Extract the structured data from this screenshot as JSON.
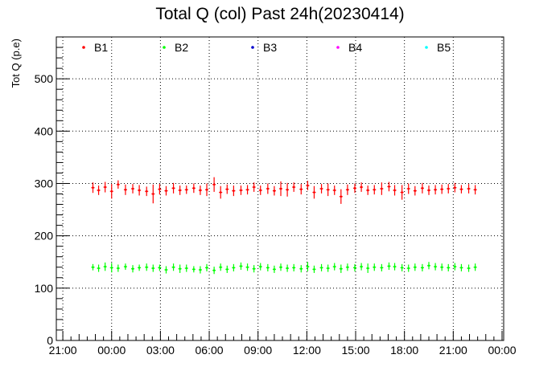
{
  "chart_data": {
    "type": "scatter",
    "title": "Total Q (col) Past 24h(20230414)",
    "xlabel": "",
    "ylabel": "Tot Q (p.e)",
    "x_tick_labels": [
      "21:00",
      "00:00",
      "03:00",
      "06:00",
      "09:00",
      "12:00",
      "15:00",
      "18:00",
      "21:00",
      "00:00"
    ],
    "x_unit": "hours",
    "xlim": [
      -0.4,
      27.1
    ],
    "ylim": [
      0,
      580
    ],
    "y_ticks": [
      0,
      100,
      200,
      300,
      400,
      500
    ],
    "y_tick_labels": [
      "0",
      "100",
      "200",
      "300",
      "400",
      "500"
    ],
    "grid": true,
    "legend_position": "top",
    "legend_entries": [
      "B1",
      "B2",
      "B3",
      "B4",
      "B5"
    ],
    "series": [
      {
        "name": "B1",
        "color": "#ff0000",
        "x": [
          1.85,
          2.2,
          2.6,
          3.0,
          3.4,
          3.85,
          4.3,
          4.7,
          5.15,
          5.55,
          5.95,
          6.35,
          6.8,
          7.2,
          7.6,
          8.05,
          8.45,
          8.85,
          9.3,
          9.7,
          10.1,
          10.5,
          10.95,
          11.35,
          11.75,
          12.15,
          12.6,
          13.0,
          13.4,
          13.8,
          14.2,
          14.65,
          15.05,
          15.45,
          15.9,
          16.3,
          16.7,
          17.1,
          17.5,
          17.95,
          18.35,
          18.75,
          19.15,
          19.6,
          20.05,
          20.4,
          20.85,
          21.25,
          21.65,
          22.1,
          22.5,
          22.9,
          23.3,
          23.7,
          24.1,
          24.5,
          24.95,
          25.35
        ],
        "y": [
          292,
          287,
          293,
          285,
          298,
          288,
          290,
          287,
          285,
          280,
          289,
          286,
          291,
          287,
          288,
          291,
          287,
          288,
          298,
          283,
          289,
          286,
          287,
          288,
          293,
          287,
          290,
          286,
          290,
          288,
          293,
          289,
          296,
          283,
          290,
          288,
          287,
          275,
          288,
          291,
          293,
          287,
          288,
          290,
          294,
          287,
          283,
          290,
          286,
          291,
          287,
          288,
          289,
          290,
          292,
          289,
          290,
          288
        ],
        "err": [
          10,
          9,
          10,
          14,
          8,
          10,
          9,
          10,
          9,
          18,
          10,
          9,
          10,
          9,
          8,
          9,
          9,
          12,
          14,
          12,
          9,
          10,
          9,
          9,
          9,
          9,
          10,
          9,
          14,
          13,
          9,
          10,
          9,
          12,
          9,
          12,
          9,
          14,
          10,
          9,
          9,
          9,
          9,
          12,
          9,
          10,
          14,
          10,
          9,
          10,
          9,
          9,
          9,
          9,
          9,
          8,
          9,
          9
        ]
      },
      {
        "name": "B2",
        "color": "#00ff00",
        "x": [
          1.85,
          2.2,
          2.6,
          3.0,
          3.4,
          3.85,
          4.3,
          4.7,
          5.15,
          5.55,
          5.95,
          6.35,
          6.8,
          7.2,
          7.6,
          8.05,
          8.45,
          8.85,
          9.3,
          9.7,
          10.1,
          10.5,
          10.95,
          11.35,
          11.75,
          12.15,
          12.6,
          13.0,
          13.4,
          13.8,
          14.2,
          14.65,
          15.05,
          15.45,
          15.9,
          16.3,
          16.7,
          17.1,
          17.5,
          17.95,
          18.35,
          18.75,
          19.15,
          19.6,
          20.05,
          20.4,
          20.85,
          21.25,
          21.65,
          22.1,
          22.5,
          22.9,
          23.3,
          23.7,
          24.1,
          24.5,
          24.95,
          25.35
        ],
        "y": [
          140,
          138,
          141,
          139,
          138,
          141,
          137,
          139,
          140,
          138,
          139,
          135,
          140,
          137,
          138,
          136,
          135,
          139,
          134,
          140,
          136,
          139,
          142,
          140,
          137,
          141,
          139,
          136,
          140,
          138,
          139,
          137,
          141,
          136,
          139,
          138,
          141,
          137,
          140,
          139,
          141,
          138,
          140,
          139,
          142,
          141,
          139,
          138,
          140,
          139,
          143,
          141,
          140,
          139,
          141,
          139,
          138,
          140
        ],
        "err": [
          6,
          7,
          8,
          9,
          7,
          6,
          7,
          6,
          7,
          7,
          6,
          7,
          7,
          8,
          7,
          6,
          7,
          7,
          7,
          7,
          7,
          7,
          7,
          7,
          7,
          7,
          7,
          7,
          7,
          7,
          7,
          7,
          9,
          7,
          7,
          7,
          7,
          8,
          7,
          7,
          7,
          9,
          7,
          7,
          7,
          7,
          7,
          7,
          7,
          7,
          7,
          7,
          7,
          7,
          7,
          7,
          7,
          7
        ]
      },
      {
        "name": "B3",
        "color": "#0000cc",
        "x": [],
        "y": [],
        "err": []
      },
      {
        "name": "B4",
        "color": "#ff00ff",
        "x": [],
        "y": [],
        "err": []
      },
      {
        "name": "B5",
        "color": "#00ffff",
        "x": [],
        "y": [],
        "err": []
      }
    ]
  }
}
